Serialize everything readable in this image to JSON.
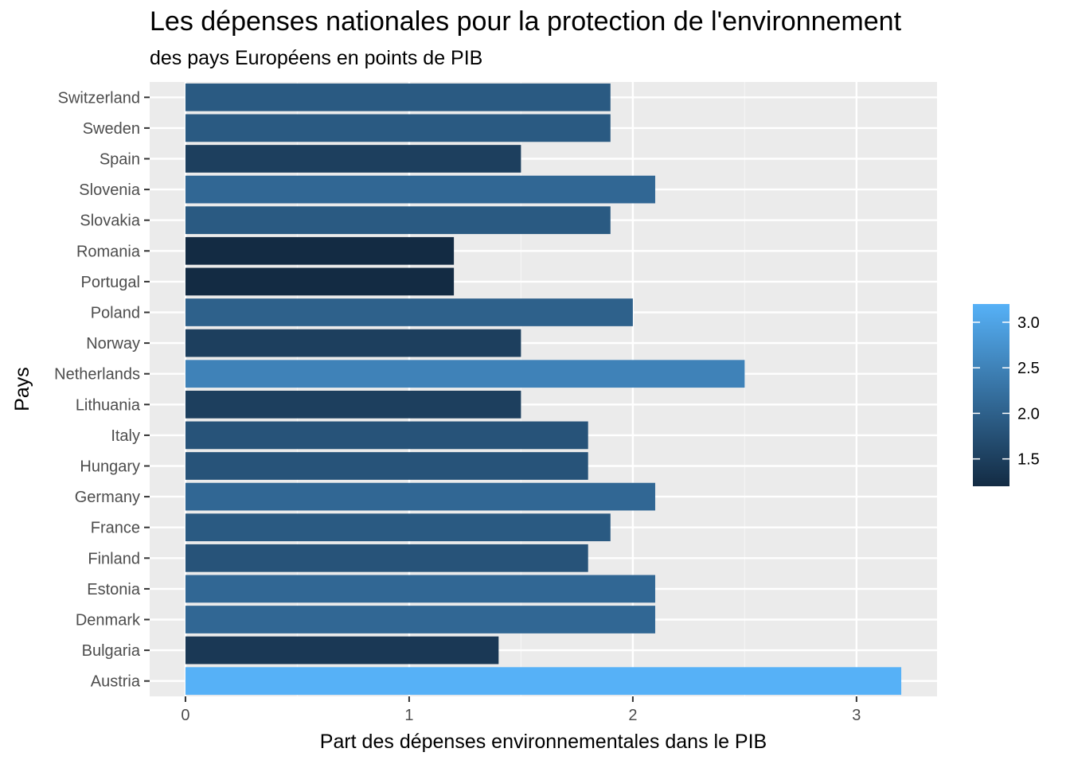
{
  "chart_data": {
    "type": "bar",
    "orientation": "horizontal",
    "title": "Les dépenses nationales pour la protection de l'environnement",
    "subtitle": "des pays Européens en points de PIB",
    "xlabel": "Part des dépenses environnementales dans le PIB",
    "ylabel": "Pays",
    "xlim": [
      -0.16,
      3.36
    ],
    "x_ticks": [
      0,
      1,
      2,
      3
    ],
    "grid": true,
    "categories": [
      "Austria",
      "Bulgaria",
      "Denmark",
      "Estonia",
      "Finland",
      "France",
      "Germany",
      "Hungary",
      "Italy",
      "Lithuania",
      "Netherlands",
      "Norway",
      "Poland",
      "Portugal",
      "Romania",
      "Slovakia",
      "Slovenia",
      "Spain",
      "Sweden",
      "Switzerland"
    ],
    "values": [
      3.2,
      1.4,
      2.1,
      2.1,
      1.8,
      1.9,
      2.1,
      1.8,
      1.8,
      1.5,
      2.5,
      1.5,
      2.0,
      1.2,
      1.2,
      1.9,
      2.1,
      1.5,
      1.9,
      1.9
    ],
    "legend": {
      "position": "right",
      "type": "colorbar",
      "range": [
        1.2,
        3.2
      ],
      "ticks": [
        1.5,
        2.0,
        2.5,
        3.0
      ],
      "tick_labels": [
        "1.5",
        "2.0",
        "2.5",
        "3.0"
      ],
      "low_color": "#132B43",
      "high_color": "#56B1F7"
    },
    "colors": {
      "panel_background": "#EBEBEB",
      "grid_major": "#FFFFFF",
      "grid_minor": "#F5F5F5",
      "tick_text": "#4D4D4D"
    }
  }
}
